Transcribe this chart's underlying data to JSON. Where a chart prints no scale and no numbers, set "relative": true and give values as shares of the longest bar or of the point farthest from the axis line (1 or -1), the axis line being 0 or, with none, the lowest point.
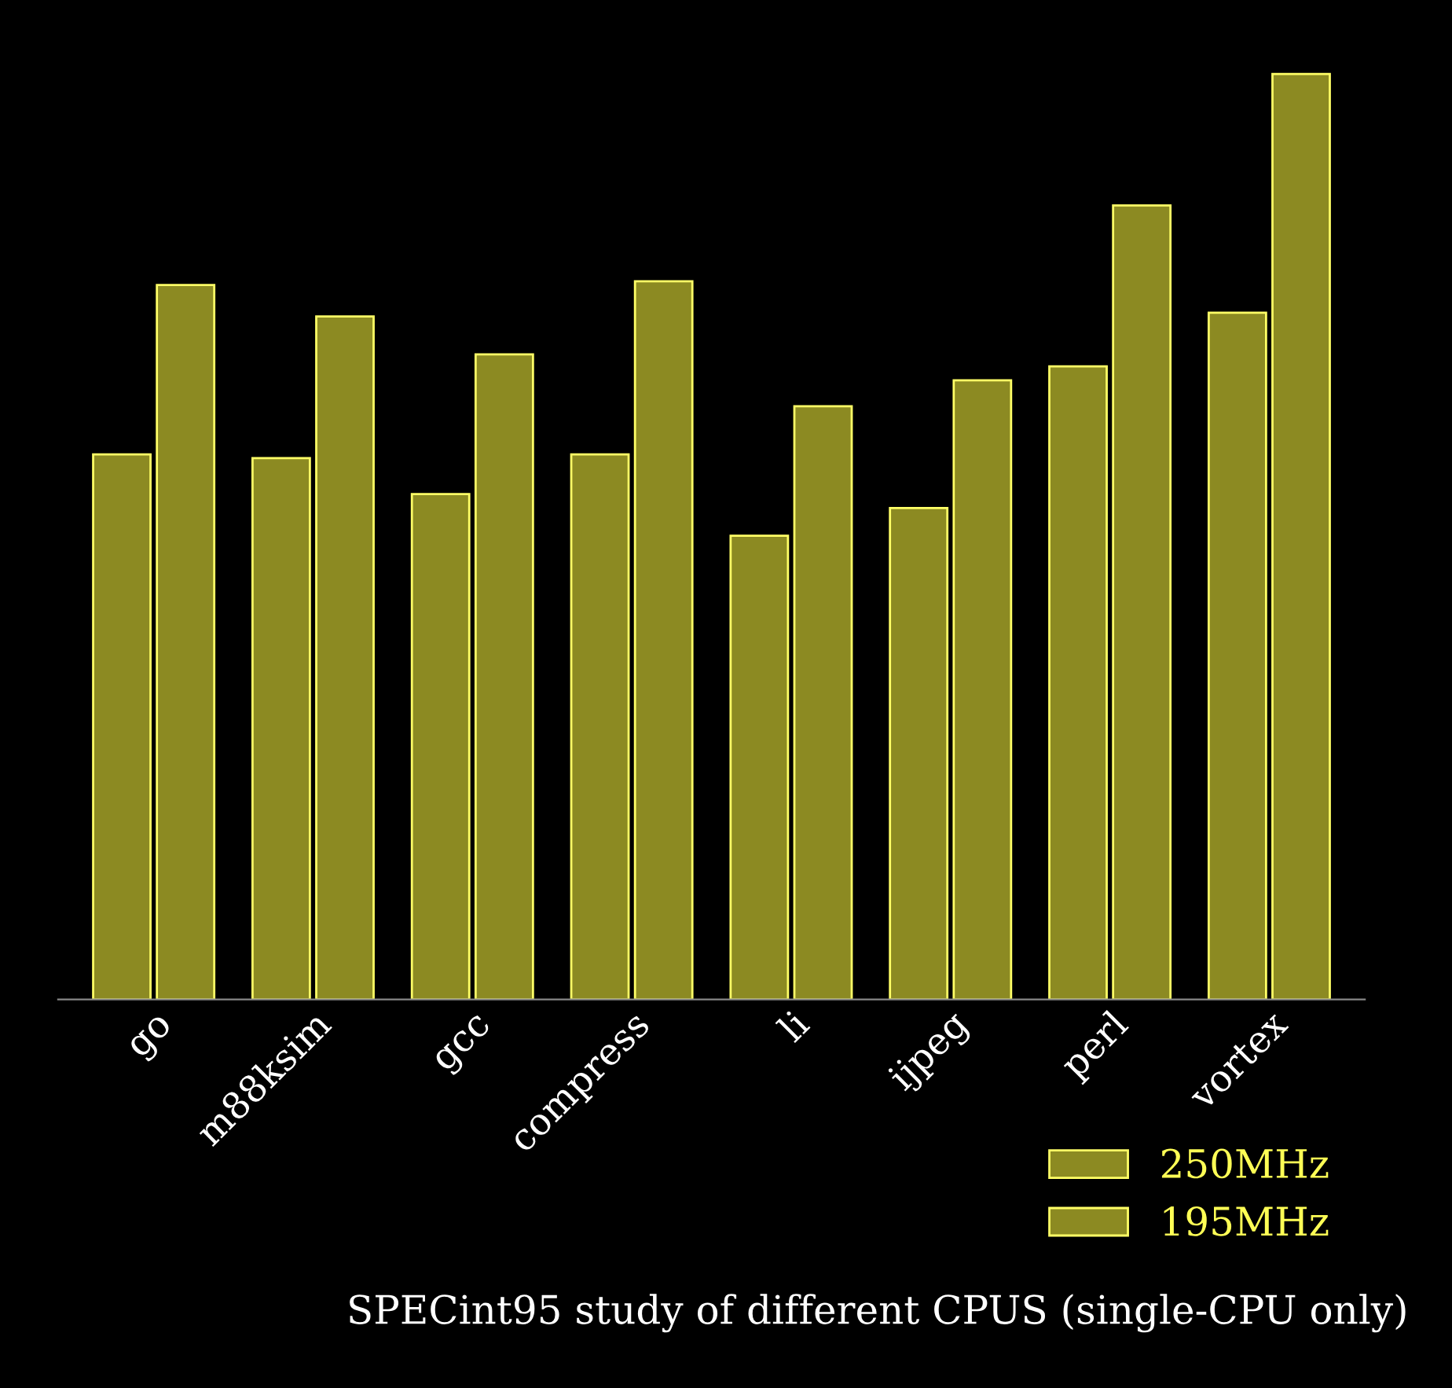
{
  "chart_data": {
    "type": "bar",
    "relative": true,
    "title": "SPECint95 study of different CPUS (single-CPU only)",
    "categories": [
      "go",
      "m88ksim",
      "gcc",
      "compress",
      "li",
      "ijpeg",
      "perl",
      "vortex"
    ],
    "series": [
      {
        "name": "195MHz",
        "color": "#8c8a22",
        "values": [
          0.589,
          0.585,
          0.546,
          0.589,
          0.501,
          0.531,
          0.684,
          0.742
        ]
      },
      {
        "name": "250MHz",
        "color": "#8c8a22",
        "values": [
          0.772,
          0.738,
          0.697,
          0.776,
          0.641,
          0.669,
          0.858,
          1.0
        ]
      }
    ],
    "legend": "bottom right",
    "grid": false
  }
}
